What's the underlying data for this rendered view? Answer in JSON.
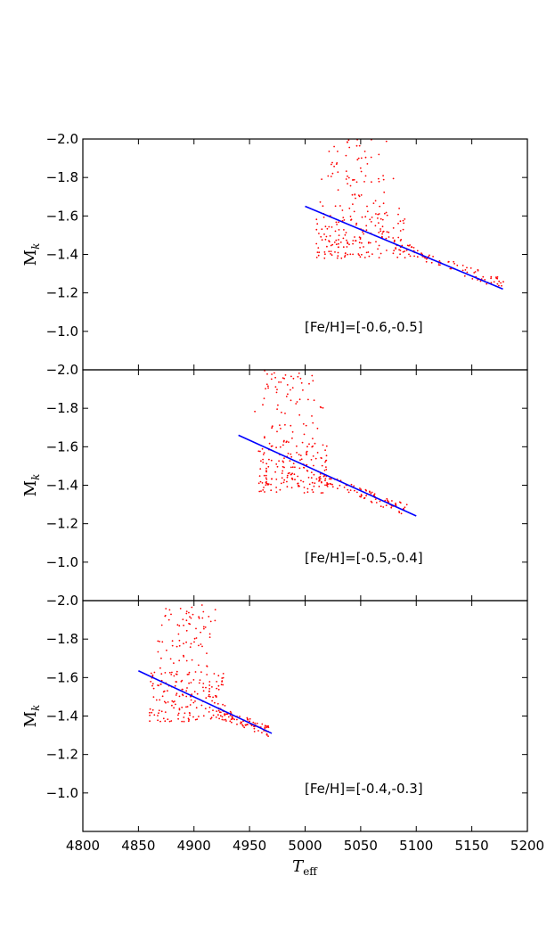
{
  "chart_data": {
    "type": "scatter",
    "layout": "3 vertically stacked panels with shared x axis",
    "xlabel": "T_eff",
    "xlabel_main": "T",
    "xlabel_sub": "eff",
    "xlim": [
      4800,
      5200
    ],
    "x_ticks": [
      "4800",
      "4850",
      "4900",
      "4950",
      "5000",
      "5050",
      "5100",
      "5150",
      "5200"
    ],
    "ylabel": "M_k",
    "ylabel_main": "M",
    "ylabel_sub": "k",
    "ylim": [
      -0.8,
      -2.0
    ],
    "y_ticks": [
      "−2.0",
      "−1.8",
      "−1.6",
      "−1.4",
      "−1.2",
      "−1.0"
    ],
    "grid": false,
    "colors": {
      "points": "#ff0000",
      "fit_line": "#0000ff",
      "axes": "#000000"
    },
    "panels": [
      {
        "label": "[Fe/H]=[-0.6,-0.5]",
        "fit_line": {
          "x": [
            5000,
            5178
          ],
          "y": [
            -1.65,
            -1.22
          ]
        },
        "scatter": {
          "description": "red clump model stars",
          "tail": {
            "x": [
              5080,
              5180
            ],
            "y": [
              -1.45,
              -1.24
            ]
          },
          "clump": {
            "x": [
              5010,
              5090
            ],
            "y": [
              -1.38,
              -1.62
            ]
          },
          "upper": {
            "x": [
              5005,
              5085
            ],
            "y": [
              -1.62,
              -2.0
            ]
          }
        }
      },
      {
        "label": "[Fe/H]=[-0.5,-0.4]",
        "fit_line": {
          "x": [
            4940,
            5100
          ],
          "y": [
            -1.66,
            -1.24
          ]
        },
        "scatter": {
          "description": "red clump model stars",
          "tail": {
            "x": [
              5010,
              5092
            ],
            "y": [
              -1.44,
              -1.27
            ]
          },
          "clump": {
            "x": [
              4958,
              5020
            ],
            "y": [
              -1.36,
              -1.62
            ]
          },
          "upper": {
            "x": [
              4945,
              5020
            ],
            "y": [
              -1.62,
              -2.0
            ]
          }
        }
      },
      {
        "label": "[Fe/H]=[-0.4,-0.3]",
        "fit_line": {
          "x": [
            4850,
            4970
          ],
          "y": [
            -1.635,
            -1.31
          ]
        },
        "scatter": {
          "description": "red clump model stars",
          "tail": {
            "x": [
              4920,
              4968
            ],
            "y": [
              -1.42,
              -1.32
            ]
          },
          "clump": {
            "x": [
              4860,
              4928
            ],
            "y": [
              -1.37,
              -1.63
            ]
          },
          "upper": {
            "x": [
              4858,
              4930
            ],
            "y": [
              -1.62,
              -1.98
            ]
          }
        }
      }
    ]
  }
}
